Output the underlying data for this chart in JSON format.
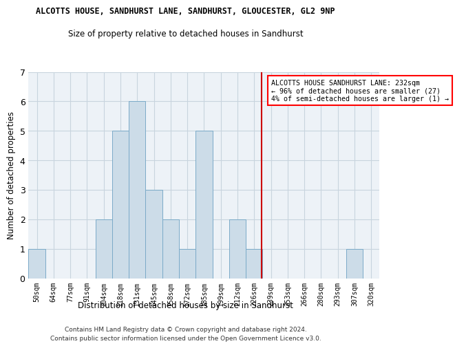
{
  "title": "ALCOTTS HOUSE, SANDHURST LANE, SANDHURST, GLOUCESTER, GL2 9NP",
  "subtitle": "Size of property relative to detached houses in Sandhurst",
  "xlabel": "Distribution of detached houses by size in Sandhurst",
  "ylabel": "Number of detached properties",
  "bar_labels": [
    "50sqm",
    "64sqm",
    "77sqm",
    "91sqm",
    "104sqm",
    "118sqm",
    "131sqm",
    "145sqm",
    "158sqm",
    "172sqm",
    "185sqm",
    "199sqm",
    "212sqm",
    "226sqm",
    "239sqm",
    "253sqm",
    "266sqm",
    "280sqm",
    "293sqm",
    "307sqm",
    "320sqm"
  ],
  "bar_values": [
    1,
    0,
    0,
    0,
    2,
    5,
    6,
    3,
    2,
    1,
    5,
    0,
    2,
    1,
    0,
    0,
    0,
    0,
    0,
    1,
    0
  ],
  "bar_color": "#ccdce8",
  "bar_edgecolor": "#7aaac8",
  "ylim": [
    0,
    7
  ],
  "yticks": [
    0,
    1,
    2,
    3,
    4,
    5,
    6,
    7
  ],
  "annotation_title": "ALCOTTS HOUSE SANDHURST LANE: 232sqm",
  "annotation_line1": "← 96% of detached houses are smaller (27)",
  "annotation_line2": "4% of semi-detached houses are larger (1) →",
  "footer1": "Contains HM Land Registry data © Crown copyright and database right 2024.",
  "footer2": "Contains public sector information licensed under the Open Government Licence v3.0.",
  "bg_color": "#edf2f7",
  "grid_color": "#c8d4de"
}
